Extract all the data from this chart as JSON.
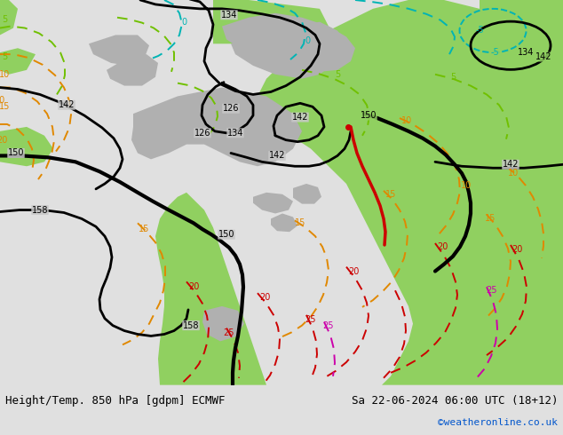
{
  "title_left": "Height/Temp. 850 hPa [gdpm] ECMWF",
  "title_right": "Sa 22-06-2024 06:00 UTC (18+12)",
  "credit": "©weatheronline.co.uk",
  "credit_color": "#0055cc",
  "bg_gray": "#c8c8c8",
  "bg_green": "#90d060",
  "figsize": [
    6.34,
    4.9
  ],
  "dpi": 100,
  "font_size_title": 9,
  "font_size_credit": 8,
  "black_lw": 2.0,
  "bold_lw": 3.0,
  "temp_lw": 1.4
}
